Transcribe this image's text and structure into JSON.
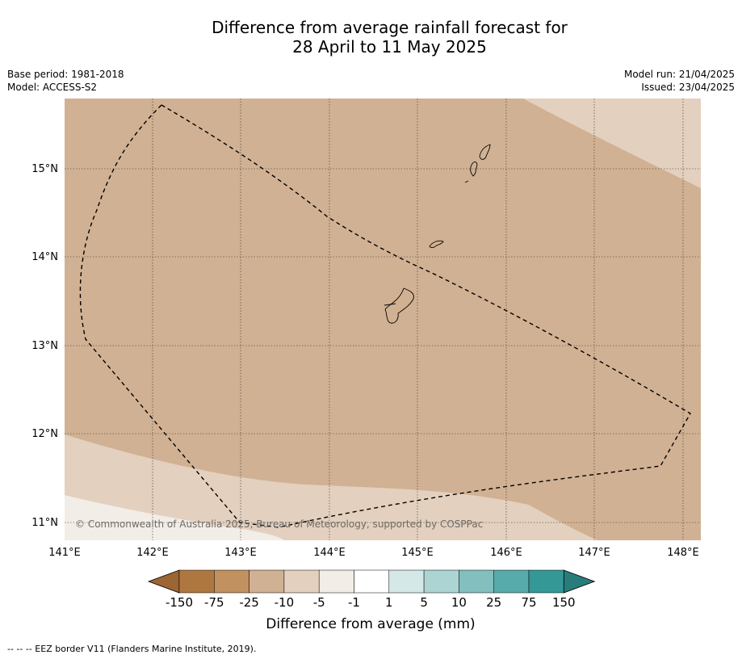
{
  "title": {
    "line1": "Difference from average rainfall forecast for",
    "line2": "28 April to 11 May 2025"
  },
  "meta": {
    "base_period": "Base period: 1981-2018",
    "model": "Model: ACCESS-S2",
    "model_run": "Model run: 21/04/2025",
    "issued": "Issued: 23/04/2025"
  },
  "map": {
    "lat_ticks": [
      "15°N",
      "14°N",
      "13°N",
      "12°N",
      "11°N"
    ],
    "lon_ticks": [
      "141°E",
      "142°E",
      "143°E",
      "144°E",
      "145°E",
      "146°E",
      "147°E",
      "148°E"
    ],
    "copyright": "© Commonwealth of Australia 2025, Bureau of Meteorology, supported by COSPPac"
  },
  "colorbar": {
    "labels": [
      "-150",
      "-75",
      "-25",
      "-10",
      "-5",
      "-1",
      "1",
      "5",
      "10",
      "25",
      "75",
      "150"
    ],
    "colors": [
      "#9c6534",
      "#af7740",
      "#c1915f",
      "#d1b193",
      "#e3d0be",
      "#f2ede6",
      "#ffffff",
      "#d5e8e8",
      "#acd4d3",
      "#83bfbf",
      "#58abab",
      "#349897",
      "#287c7a"
    ],
    "title": "Difference from average (mm)"
  },
  "footnote": "--  --  -- EEZ border V11 (Flanders Marine Institute, 2019)."
}
